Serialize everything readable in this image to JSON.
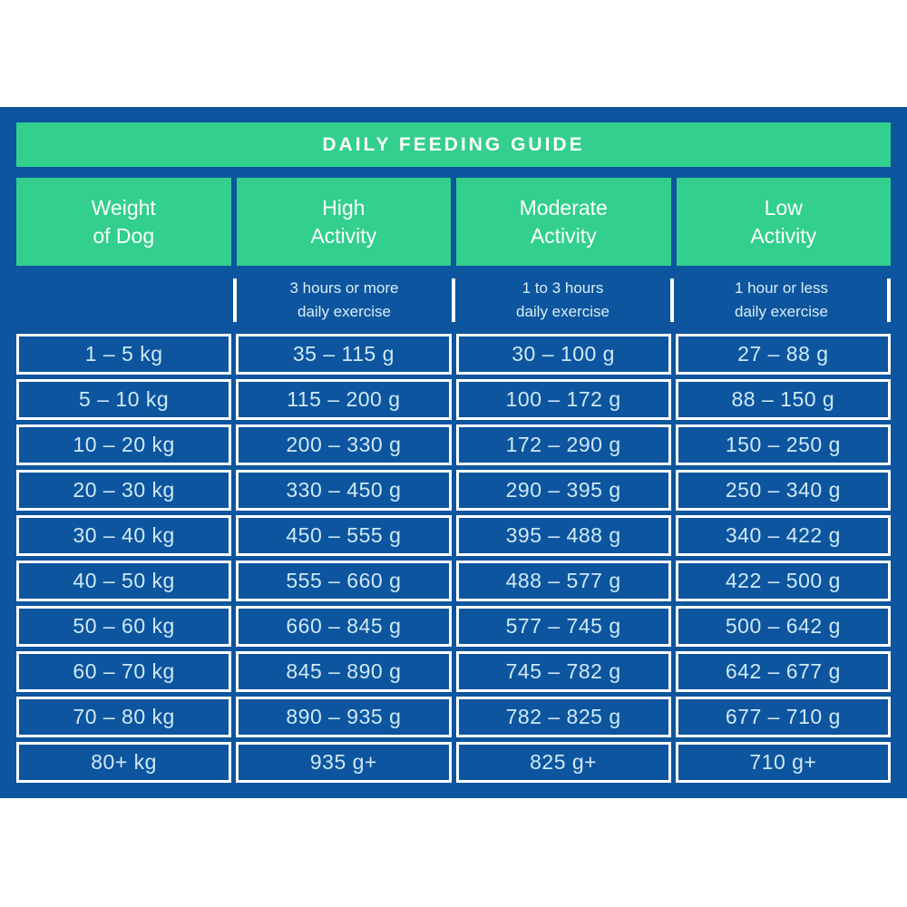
{
  "title": "DAILY FEEDING GUIDE",
  "colors": {
    "panel_blue": "#0d559e",
    "header_green": "#32cf8d",
    "border_white": "#ffffff",
    "cell_text": "#cfe9f7"
  },
  "columns": [
    {
      "line1": "Weight",
      "line2": "of Dog",
      "sub1": "",
      "sub2": ""
    },
    {
      "line1": "High",
      "line2": "Activity",
      "sub1": "3 hours or more",
      "sub2": "daily exercise"
    },
    {
      "line1": "Moderate",
      "line2": "Activity",
      "sub1": "1 to 3 hours",
      "sub2": "daily exercise"
    },
    {
      "line1": "Low",
      "line2": "Activity",
      "sub1": "1 hour or less",
      "sub2": "daily exercise"
    }
  ],
  "rows": [
    [
      "1 – 5 kg",
      "35 – 115 g",
      "30 – 100 g",
      "27 – 88 g"
    ],
    [
      "5 – 10 kg",
      "115 – 200 g",
      "100 – 172 g",
      "88 – 150 g"
    ],
    [
      "10 – 20 kg",
      "200 – 330 g",
      "172 – 290 g",
      "150 – 250 g"
    ],
    [
      "20 – 30 kg",
      "330 – 450 g",
      "290 – 395 g",
      "250 – 340 g"
    ],
    [
      "30 – 40 kg",
      "450 – 555 g",
      "395 – 488 g",
      "340 – 422 g"
    ],
    [
      "40 – 50 kg",
      "555 – 660 g",
      "488 – 577 g",
      "422 – 500 g"
    ],
    [
      "50 – 60 kg",
      "660 – 845 g",
      "577 – 745 g",
      "500 – 642 g"
    ],
    [
      "60 – 70 kg",
      "845 – 890 g",
      "745 – 782 g",
      "642 – 677 g"
    ],
    [
      "70 – 80 kg",
      "890 – 935 g",
      "782 – 825 g",
      "677 – 710 g"
    ],
    [
      "80+ kg",
      "935 g+",
      "825 g+",
      "710 g+"
    ]
  ]
}
